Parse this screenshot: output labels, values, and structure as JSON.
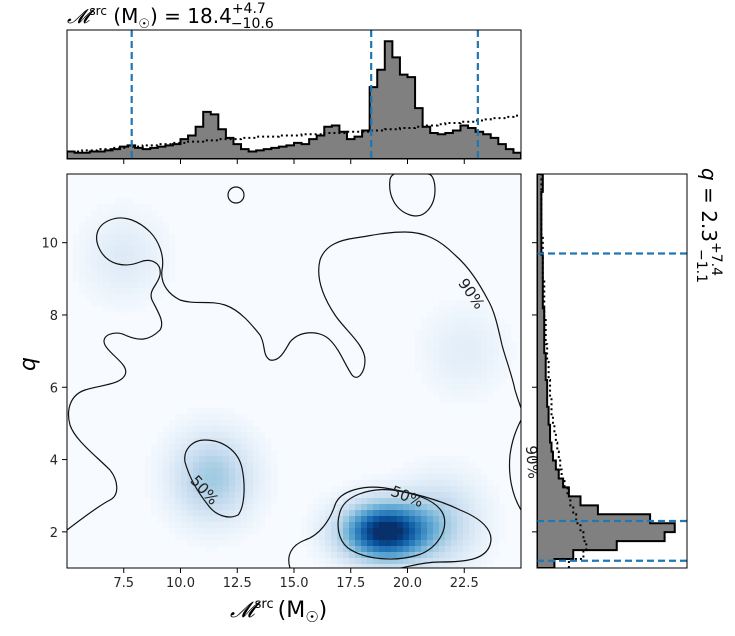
{
  "chart_data": [
    {
      "type": "heatmap",
      "panel": "joint",
      "xlabel": "𝓜src (M☉)",
      "xlabel_parts": {
        "symbol": "𝓜",
        "sup": "src",
        "unit": "(M",
        "sun": "☉",
        "close": ")"
      },
      "ylabel": "q",
      "xlim": [
        5.0,
        25.0
      ],
      "ylim": [
        1.0,
        11.9
      ],
      "x_ticks": [
        7.5,
        10.0,
        12.5,
        15.0,
        17.5,
        20.0,
        22.5
      ],
      "x_tick_labels": [
        "7.5",
        "10.0",
        "12.5",
        "15.0",
        "17.5",
        "20.0",
        "22.5"
      ],
      "y_ticks": [
        2,
        4,
        6,
        8,
        10
      ],
      "y_tick_labels": [
        "2",
        "4",
        "6",
        "8",
        "10"
      ],
      "colormap": "Blues",
      "density_peaks": [
        {
          "x": 19.0,
          "y": 2.0,
          "weight": 1.0
        },
        {
          "x": 11.4,
          "y": 3.5,
          "weight": 0.35
        },
        {
          "x": 21.5,
          "y": 2.3,
          "weight": 0.25
        },
        {
          "x": 7.5,
          "y": 9.6,
          "weight": 0.12
        },
        {
          "x": 22.5,
          "y": 7.0,
          "weight": 0.1
        }
      ],
      "contours": [
        {
          "level": "50%",
          "label": "50%"
        },
        {
          "level": "90%",
          "label": "90%"
        }
      ]
    },
    {
      "type": "bar",
      "panel": "top-marginal",
      "title_parts": {
        "symbol": "𝓜",
        "sup": "src",
        "unit": " (M",
        "sun": "☉",
        "close": ") = ",
        "median": "18.4",
        "plus": "+4.7",
        "minus": "−10.6"
      },
      "x_range": [
        5.0,
        25.0
      ],
      "bins": 60,
      "posterior_values": [
        0.06,
        0.05,
        0.05,
        0.06,
        0.06,
        0.07,
        0.08,
        0.1,
        0.11,
        0.09,
        0.08,
        0.09,
        0.1,
        0.11,
        0.12,
        0.16,
        0.19,
        0.26,
        0.38,
        0.36,
        0.24,
        0.17,
        0.12,
        0.08,
        0.06,
        0.07,
        0.08,
        0.09,
        0.1,
        0.11,
        0.13,
        0.12,
        0.16,
        0.19,
        0.26,
        0.27,
        0.22,
        0.16,
        0.18,
        0.23,
        0.58,
        0.72,
        0.95,
        0.82,
        0.68,
        0.66,
        0.41,
        0.26,
        0.21,
        0.2,
        0.21,
        0.23,
        0.27,
        0.25,
        0.22,
        0.2,
        0.17,
        0.12,
        0.08,
        0.05
      ],
      "prior_values": [
        0.06,
        0.06,
        0.07,
        0.07,
        0.08,
        0.08,
        0.09,
        0.09,
        0.1,
        0.1,
        0.11,
        0.11,
        0.12,
        0.12,
        0.13,
        0.13,
        0.14,
        0.14,
        0.15,
        0.15,
        0.16,
        0.16,
        0.16,
        0.17,
        0.17,
        0.18,
        0.18,
        0.18,
        0.19,
        0.19,
        0.19,
        0.2,
        0.2,
        0.2,
        0.21,
        0.21,
        0.21,
        0.22,
        0.22,
        0.22,
        0.23,
        0.23,
        0.24,
        0.24,
        0.25,
        0.25,
        0.26,
        0.27,
        0.27,
        0.28,
        0.29,
        0.29,
        0.3,
        0.3,
        0.31,
        0.32,
        0.33,
        0.33,
        0.34,
        0.35
      ],
      "quantile_lines": [
        7.85,
        18.4,
        23.1
      ]
    },
    {
      "type": "bar",
      "panel": "right-marginal",
      "orientation": "horizontal",
      "title_parts": {
        "symbol": "q",
        "eq": " = ",
        "median": "2.3",
        "plus": "+7.4",
        "minus": "−1.1"
      },
      "y_range": [
        1.0,
        11.9
      ],
      "bins": 44,
      "posterior_values": [
        0.12,
        0.25,
        0.55,
        0.88,
        0.95,
        0.78,
        0.42,
        0.3,
        0.22,
        0.18,
        0.15,
        0.13,
        0.11,
        0.1,
        0.09,
        0.09,
        0.08,
        0.08,
        0.07,
        0.07,
        0.07,
        0.06,
        0.06,
        0.06,
        0.05,
        0.05,
        0.05,
        0.05,
        0.05,
        0.04,
        0.04,
        0.04,
        0.04,
        0.04,
        0.04,
        0.03,
        0.03,
        0.03,
        0.03,
        0.03,
        0.03,
        0.03,
        0.04,
        0.04
      ],
      "prior_values": [
        0.22,
        0.32,
        0.34,
        0.32,
        0.3,
        0.27,
        0.25,
        0.23,
        0.21,
        0.19,
        0.17,
        0.16,
        0.15,
        0.14,
        0.13,
        0.12,
        0.11,
        0.1,
        0.1,
        0.09,
        0.09,
        0.08,
        0.08,
        0.07,
        0.07,
        0.06,
        0.06,
        0.06,
        0.05,
        0.05,
        0.05,
        0.05,
        0.04,
        0.04,
        0.04,
        0.04,
        0.04,
        0.03,
        0.03,
        0.03,
        0.03,
        0.03,
        0.03,
        0.03
      ],
      "quantile_lines": [
        1.2,
        2.3,
        9.7
      ]
    }
  ]
}
